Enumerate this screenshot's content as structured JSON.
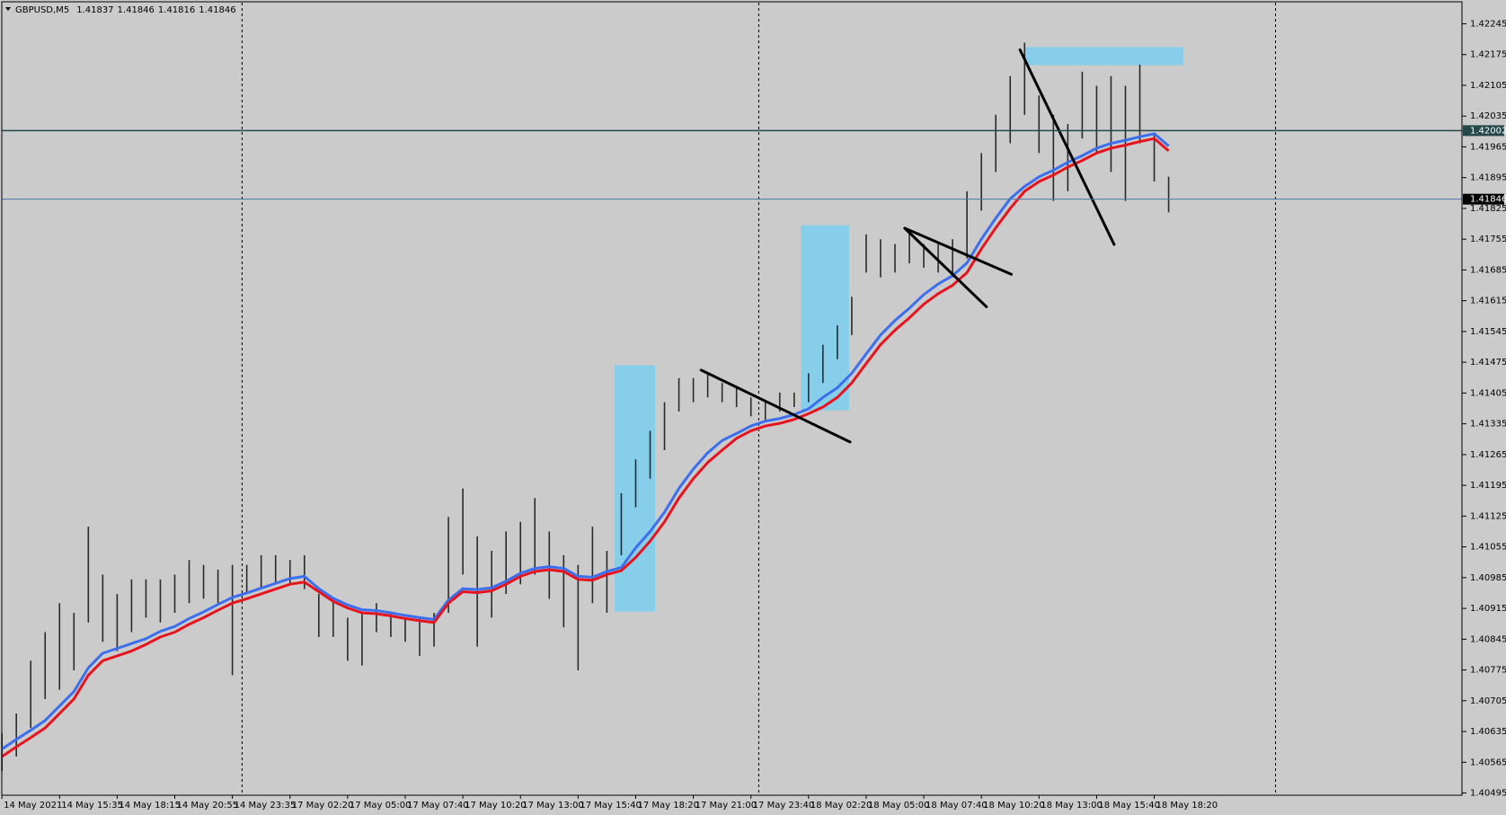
{
  "chart_data": {
    "type": "ohlc",
    "title": "GBPUSD,M5",
    "ohlc": [
      1.41837,
      1.41846,
      1.41816,
      1.41846
    ],
    "categories": [
      "14 May 2021",
      null,
      null,
      null,
      "14 May 15:35",
      null,
      null,
      null,
      "14 May 18:15",
      null,
      null,
      null,
      "14 May 20:55",
      null,
      null,
      null,
      "14 May 23:35",
      null,
      null,
      null,
      "17 May 02:20",
      null,
      null,
      null,
      "17 May 05:00",
      null,
      null,
      null,
      "17 May 07:40",
      null,
      null,
      null,
      "17 May 10:20",
      null,
      null,
      null,
      "17 May 13:00",
      null,
      null,
      null,
      "17 May 15:40",
      null,
      null,
      null,
      "17 May 18:20",
      null,
      null,
      null,
      "17 May 21:00",
      null,
      null,
      null,
      "17 May 23:40",
      null,
      null,
      null,
      "18 May 02:20",
      null,
      null,
      null,
      "18 May 05:00",
      null,
      null,
      null,
      "18 May 07:40",
      null,
      null,
      null,
      "18 May 10:20",
      null,
      null,
      null,
      "18 May 13:00",
      null,
      null,
      null,
      "18 May 15:40",
      null,
      null,
      null,
      "18 May 18:20",
      null
    ],
    "high": [
      1.40632,
      1.40676,
      1.40796,
      1.40861,
      1.40927,
      1.40905,
      1.41101,
      1.40992,
      1.40948,
      1.40981,
      1.40981,
      1.40981,
      1.40992,
      1.41025,
      1.41014,
      1.41003,
      1.41014,
      1.41014,
      1.41036,
      1.41036,
      1.41025,
      1.41036,
      1.40948,
      1.40937,
      1.40894,
      1.40905,
      1.40927,
      1.40905,
      1.40894,
      1.40894,
      1.40905,
      1.41123,
      1.41188,
      1.41079,
      1.41046,
      1.4109,
      1.41112,
      1.41166,
      1.4109,
      1.41036,
      1.41014,
      1.41101,
      1.41046,
      1.41177,
      1.41254,
      1.41319,
      1.41384,
      1.41439,
      1.41439,
      1.4145,
      1.41428,
      1.41417,
      1.41395,
      1.41384,
      1.41406,
      1.41406,
      1.4145,
      1.41515,
      1.41559,
      1.41624,
      1.41766,
      1.41755,
      1.41744,
      1.41777,
      1.41744,
      1.41744,
      1.41755,
      1.41864,
      1.41951,
      1.42038,
      1.42126,
      1.42202,
      1.42082,
      1.42038,
      1.42017,
      1.42136,
      1.42104,
      1.42126,
      1.42104,
      1.42152,
      1.41995,
      1.41897
    ],
    "low": [
      1.40545,
      1.40578,
      1.40643,
      1.40709,
      1.4073,
      1.40774,
      1.40883,
      1.40839,
      1.40818,
      1.40861,
      1.40894,
      1.40883,
      1.40905,
      1.40927,
      1.40937,
      1.40927,
      1.40763,
      1.40948,
      1.40959,
      1.4097,
      1.4097,
      1.40959,
      1.4085,
      1.4085,
      1.40796,
      1.40785,
      1.40861,
      1.4085,
      1.40839,
      1.40807,
      1.40828,
      1.40905,
      1.40992,
      1.40828,
      1.40894,
      1.40948,
      1.4097,
      1.40992,
      1.40937,
      1.40872,
      1.40774,
      1.40927,
      1.40905,
      1.41036,
      1.41145,
      1.4121,
      1.41275,
      1.41363,
      1.41384,
      1.41395,
      1.41384,
      1.41373,
      1.41352,
      1.41341,
      1.41363,
      1.41373,
      1.41384,
      1.41428,
      1.41482,
      1.41537,
      1.41679,
      1.41668,
      1.41679,
      1.417,
      1.4169,
      1.41679,
      1.41668,
      1.41711,
      1.4182,
      1.41908,
      1.41973,
      1.42038,
      1.41951,
      1.41842,
      1.41864,
      1.41984,
      1.41951,
      1.41908,
      1.41842,
      1.41973,
      1.41886,
      1.41816
    ],
    "bar_color": "#2a2a2a",
    "lines": [
      {
        "color": "#3c6ef0",
        "values": [
          1.40595,
          1.40617,
          1.40638,
          1.4066,
          1.40693,
          1.40726,
          1.4078,
          1.40813,
          1.40824,
          1.40835,
          1.40846,
          1.40863,
          1.40874,
          1.40892,
          1.40907,
          1.40924,
          1.4094,
          1.4095,
          1.40961,
          1.40972,
          1.40983,
          1.40988,
          1.4096,
          1.40938,
          1.40923,
          1.40912,
          1.4091,
          1.40905,
          1.40899,
          1.40894,
          1.4089,
          1.40934,
          1.4096,
          1.40958,
          1.40962,
          1.40977,
          1.40995,
          1.41006,
          1.4101,
          1.41006,
          1.40988,
          1.40986,
          1.40999,
          1.41008,
          1.41053,
          1.4109,
          1.41134,
          1.41188,
          1.41232,
          1.41269,
          1.41297,
          1.41313,
          1.4133,
          1.41341,
          1.41347,
          1.41356,
          1.41369,
          1.41395,
          1.41417,
          1.4145,
          1.41494,
          1.41537,
          1.4157,
          1.41598,
          1.41629,
          1.41653,
          1.41672,
          1.41701,
          1.41755,
          1.41803,
          1.41847,
          1.41875,
          1.41897,
          1.41912,
          1.4193,
          1.41945,
          1.41962,
          1.41973,
          1.4198,
          1.41988,
          1.41995,
          1.41967
        ]
      },
      {
        "color": "#e6141e",
        "values": [
          1.40578,
          1.406,
          1.40621,
          1.40643,
          1.40676,
          1.40709,
          1.40763,
          1.40796,
          1.40807,
          1.40818,
          1.40833,
          1.4085,
          1.40861,
          1.40879,
          1.40894,
          1.40911,
          1.40927,
          1.40937,
          1.40948,
          1.40959,
          1.4097,
          1.40975,
          1.40953,
          1.40931,
          1.40916,
          1.40905,
          1.40903,
          1.40898,
          1.40892,
          1.40887,
          1.40883,
          1.40927,
          1.40953,
          1.40951,
          1.40955,
          1.4097,
          1.40988,
          1.40999,
          1.41003,
          1.40999,
          1.40981,
          1.40979,
          1.40992,
          1.41001,
          1.41031,
          1.41068,
          1.41112,
          1.41166,
          1.4121,
          1.41247,
          1.41275,
          1.41302,
          1.41319,
          1.4133,
          1.41336,
          1.41345,
          1.41358,
          1.41373,
          1.41395,
          1.41428,
          1.41472,
          1.41515,
          1.41548,
          1.41576,
          1.41607,
          1.41631,
          1.4165,
          1.41679,
          1.41733,
          1.41781,
          1.41825,
          1.41864,
          1.41886,
          1.41901,
          1.41919,
          1.41934,
          1.41951,
          1.41962,
          1.41969,
          1.41977,
          1.41984,
          1.41956
        ]
      }
    ],
    "hlines": [
      {
        "value": 1.42002,
        "color": "#24474a"
      },
      {
        "value": 1.41846,
        "color": "#4a79a8"
      }
    ],
    "ylim": [
      1.4049,
      1.42293
    ],
    "yticks": [
      1.42245,
      1.42175,
      1.42105,
      1.42035,
      1.41965,
      1.41895,
      1.41825,
      1.41755,
      1.41685,
      1.41615,
      1.41545,
      1.41475,
      1.41405,
      1.41335,
      1.41265,
      1.41195,
      1.41125,
      1.41055,
      1.40985,
      1.40915,
      1.40845,
      1.40775,
      1.40705,
      1.40635,
      1.40565,
      1.40495
    ],
    "grid": false
  }
}
